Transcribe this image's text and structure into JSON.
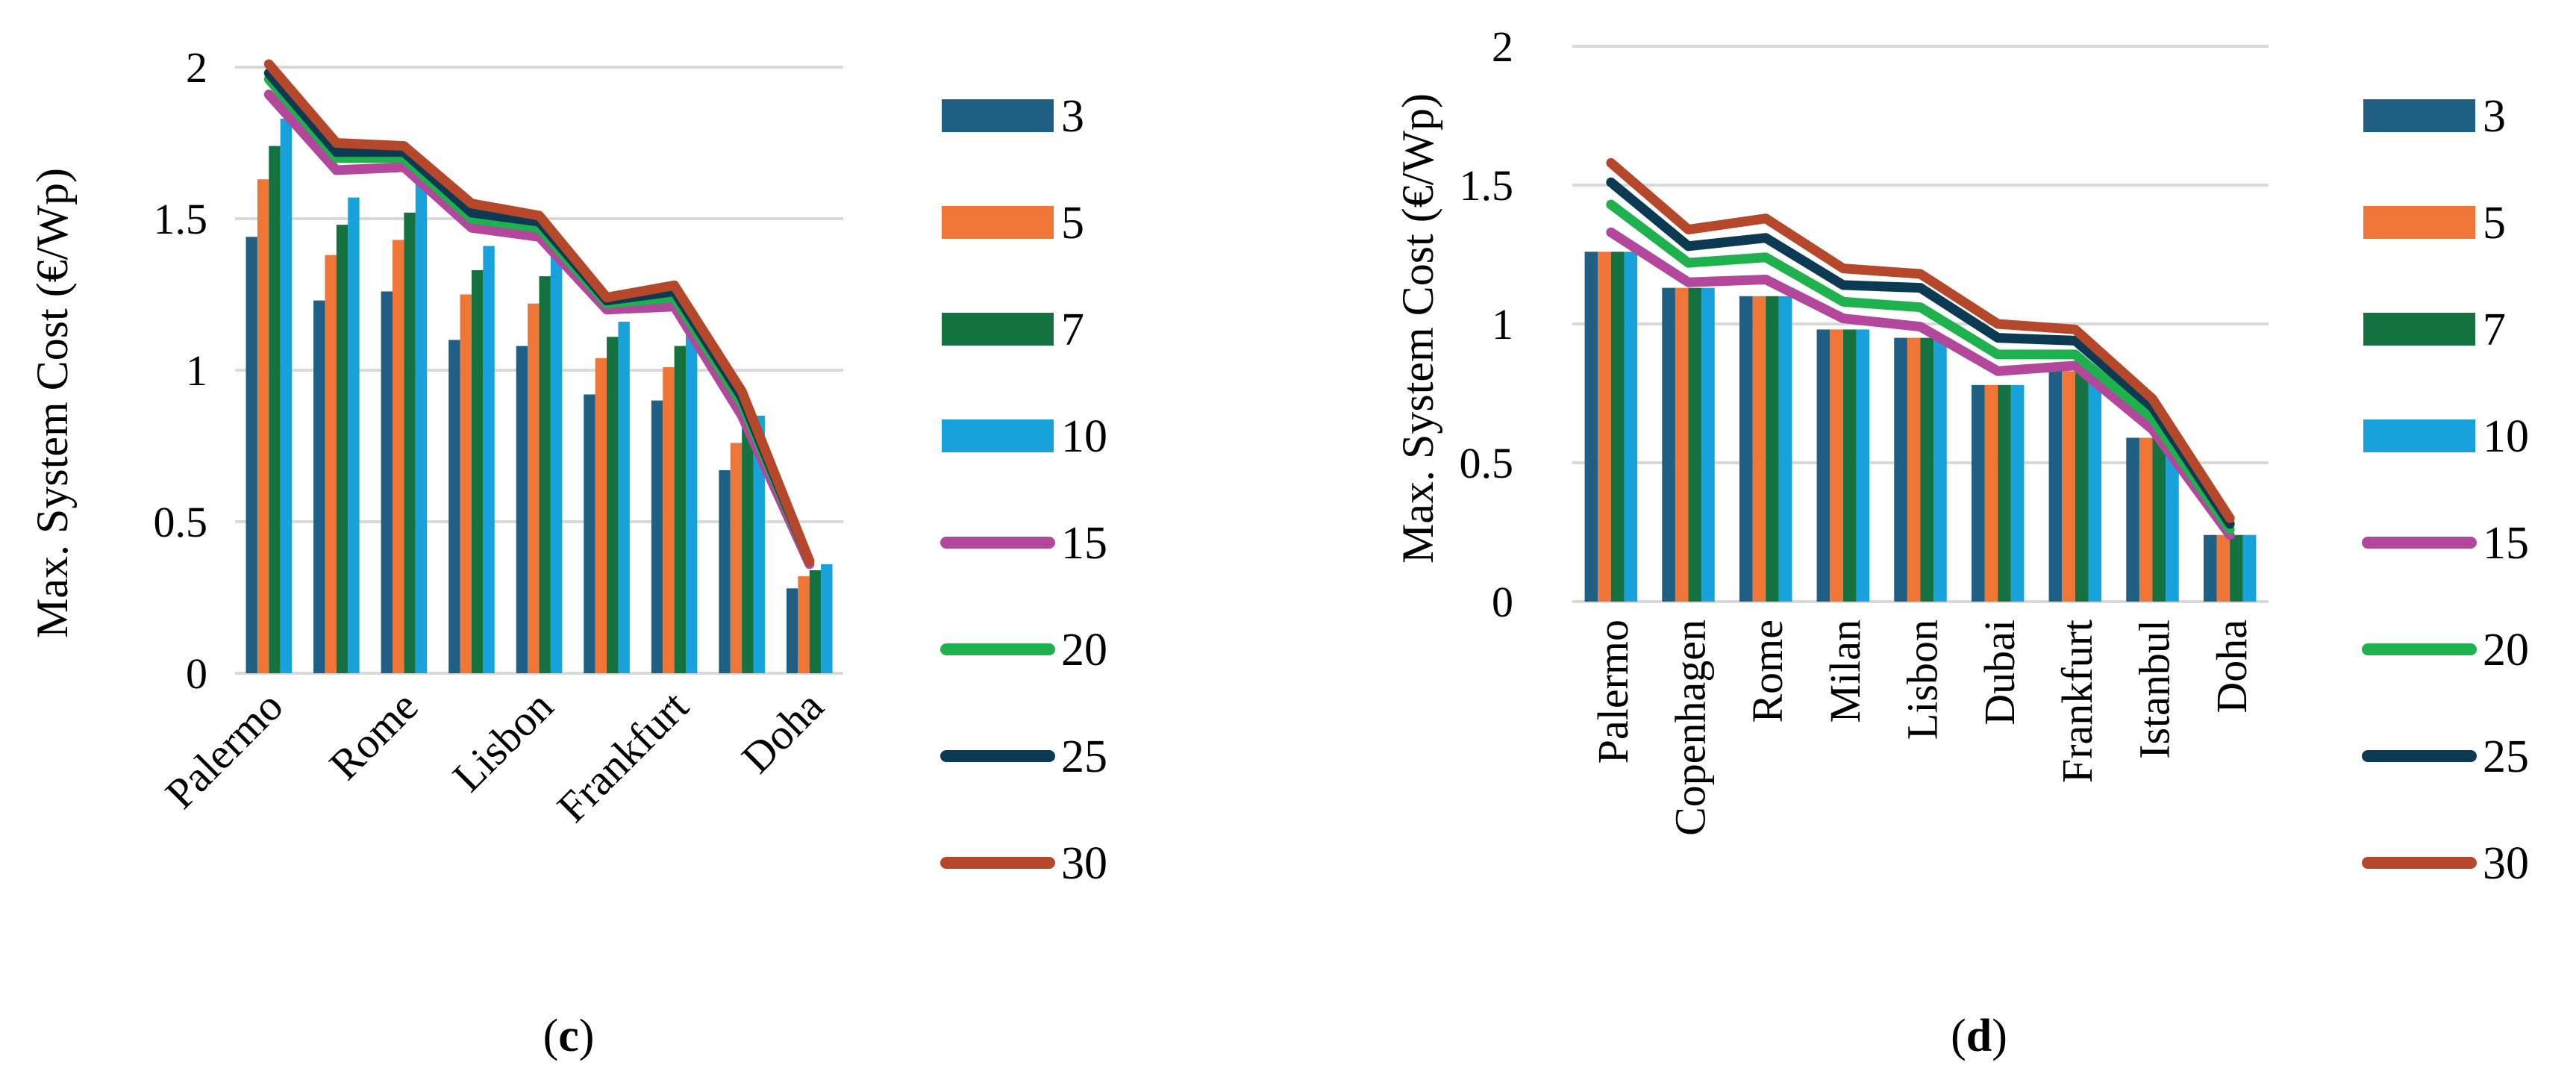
{
  "chart_data": [
    {
      "type": "bar",
      "panel_label": "c",
      "title": "",
      "ylabel": "Max. System Cost (€/Wp)",
      "xlabel": "",
      "ylim": [
        0,
        2
      ],
      "yticks": [
        0,
        0.5,
        1,
        1.5,
        2
      ],
      "grid": true,
      "legend_position": "right",
      "categories": [
        "Palermo",
        "",
        "Rome",
        "",
        "Lisbon",
        "",
        "Frankfurt",
        "",
        "Doha"
      ],
      "bar_series": [
        {
          "name": "3",
          "color": "#1f5f84",
          "values": [
            1.44,
            1.23,
            1.26,
            1.1,
            1.08,
            0.92,
            0.9,
            0.67,
            0.28
          ]
        },
        {
          "name": "5",
          "color": "#f07637",
          "values": [
            1.63,
            1.38,
            1.43,
            1.25,
            1.22,
            1.04,
            1.01,
            0.76,
            0.32
          ]
        },
        {
          "name": "7",
          "color": "#13723f",
          "values": [
            1.74,
            1.48,
            1.52,
            1.33,
            1.31,
            1.11,
            1.08,
            0.81,
            0.34
          ]
        },
        {
          "name": "10",
          "color": "#17a2dc",
          "values": [
            1.83,
            1.57,
            1.62,
            1.41,
            1.38,
            1.16,
            1.12,
            0.85,
            0.36
          ]
        }
      ],
      "line_series": [
        {
          "name": "15",
          "color": "#b2479b",
          "values": [
            1.91,
            1.66,
            1.67,
            1.47,
            1.44,
            1.2,
            1.21,
            0.85,
            0.36
          ]
        },
        {
          "name": "20",
          "color": "#1fb14e",
          "values": [
            1.96,
            1.7,
            1.7,
            1.5,
            1.47,
            1.22,
            1.24,
            0.89,
            0.37
          ]
        },
        {
          "name": "25",
          "color": "#0b3a52",
          "values": [
            1.98,
            1.72,
            1.72,
            1.52,
            1.49,
            1.23,
            1.26,
            0.91,
            0.37
          ]
        },
        {
          "name": "30",
          "color": "#b5472b",
          "values": [
            2.01,
            1.75,
            1.74,
            1.55,
            1.51,
            1.24,
            1.28,
            0.93,
            0.37
          ]
        }
      ]
    },
    {
      "type": "bar",
      "panel_label": "d",
      "title": "",
      "ylabel": "Max. System Cost (€/Wp)",
      "xlabel": "",
      "ylim": [
        0,
        2
      ],
      "yticks": [
        0,
        0.5,
        1,
        1.5,
        2
      ],
      "grid": true,
      "legend_position": "right",
      "categories": [
        "Palermo",
        "Copenhagen",
        "Rome",
        "Milan",
        "Lisbon",
        "Dubai",
        "Frankfurt",
        "Istanbul",
        "Doha"
      ],
      "bar_series": [
        {
          "name": "3",
          "color": "#1f5f84",
          "values": [
            1.26,
            1.13,
            1.1,
            0.98,
            0.95,
            0.78,
            0.83,
            0.59,
            0.24
          ]
        },
        {
          "name": "5",
          "color": "#f07637",
          "values": [
            1.26,
            1.13,
            1.1,
            0.98,
            0.95,
            0.78,
            0.83,
            0.59,
            0.24
          ]
        },
        {
          "name": "7",
          "color": "#13723f",
          "values": [
            1.26,
            1.13,
            1.1,
            0.98,
            0.95,
            0.78,
            0.83,
            0.59,
            0.24
          ]
        },
        {
          "name": "10",
          "color": "#17a2dc",
          "values": [
            1.26,
            1.13,
            1.1,
            0.98,
            0.95,
            0.78,
            0.83,
            0.59,
            0.24
          ]
        }
      ],
      "line_series": [
        {
          "name": "15",
          "color": "#b2479b",
          "values": [
            1.33,
            1.15,
            1.16,
            1.02,
            0.99,
            0.83,
            0.85,
            0.62,
            0.24
          ]
        },
        {
          "name": "20",
          "color": "#1fb14e",
          "values": [
            1.43,
            1.22,
            1.24,
            1.08,
            1.06,
            0.89,
            0.89,
            0.66,
            0.26
          ]
        },
        {
          "name": "25",
          "color": "#0b3a52",
          "values": [
            1.51,
            1.28,
            1.31,
            1.14,
            1.13,
            0.95,
            0.94,
            0.7,
            0.28
          ]
        },
        {
          "name": "30",
          "color": "#b5472b",
          "values": [
            1.58,
            1.34,
            1.38,
            1.2,
            1.18,
            1.0,
            0.98,
            0.73,
            0.3
          ]
        }
      ]
    }
  ]
}
